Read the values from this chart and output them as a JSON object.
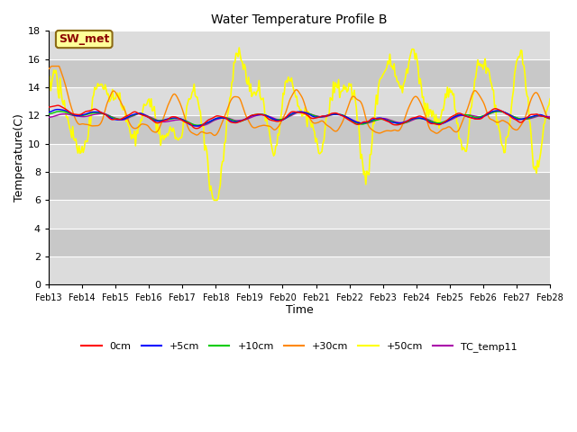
{
  "title": "Water Temperature Profile B",
  "xlabel": "Time",
  "ylabel": "Temperature(C)",
  "ylim": [
    0,
    18
  ],
  "yticks": [
    0,
    2,
    4,
    6,
    8,
    10,
    12,
    14,
    16,
    18
  ],
  "xtick_labels": [
    "Feb 13",
    "Feb 14",
    "Feb 15",
    "Feb 16",
    "Feb 17",
    "Feb 18",
    "Feb 19",
    "Feb 20",
    "Feb 21",
    "Feb 22",
    "Feb 23",
    "Feb 24",
    "Feb 25",
    "Feb 26",
    "Feb 27",
    "Feb 28"
  ],
  "annotation_text": "SW_met",
  "annotation_color": "#8B0000",
  "annotation_bg": "#FFFF99",
  "annotation_border": "#8B6914",
  "colors": {
    "0cm": "#FF0000",
    "+5cm": "#0000FF",
    "+10cm": "#00CC00",
    "+30cm": "#FF8800",
    "+50cm": "#FFFF00",
    "TC_temp11": "#AA00AA"
  },
  "lws": {
    "0cm": 1.0,
    "+5cm": 1.0,
    "+10cm": 1.0,
    "+30cm": 1.0,
    "+50cm": 1.2,
    "TC_temp11": 1.0
  },
  "bg_light": "#DCDCDC",
  "bg_dark": "#C8C8C8",
  "grid_color": "#FFFFFF",
  "band_edges": [
    0,
    2,
    4,
    6,
    8,
    10,
    12,
    14,
    16,
    18
  ],
  "title_fontsize": 10,
  "axis_label_fontsize": 9,
  "tick_fontsize": 8,
  "legend_fontsize": 8
}
